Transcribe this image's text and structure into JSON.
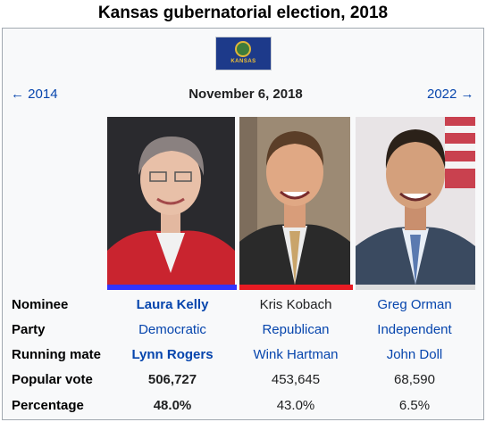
{
  "title": "Kansas gubernatorial election, 2018",
  "flag": {
    "text": "KANSAS",
    "icon": "kansas-flag-icon"
  },
  "nav": {
    "prev": "← 2014",
    "date": "November 6, 2018",
    "next": "2022 →"
  },
  "rows": {
    "nominee": "Nominee",
    "party": "Party",
    "running_mate": "Running mate",
    "popular_vote": "Popular vote",
    "percentage": "Percentage"
  },
  "candidates": [
    {
      "nominee": "Laura Kelly",
      "party": "Democratic",
      "running_mate": "Lynn Rogers",
      "popular_vote": "506,727",
      "percentage": "48.0%",
      "party_color": "#3333FF",
      "winner": true
    },
    {
      "nominee": "Kris Kobach",
      "party": "Republican",
      "running_mate": "Wink Hartman",
      "popular_vote": "453,645",
      "percentage": "43.0%",
      "party_color": "#E81B23",
      "winner": false
    },
    {
      "nominee": "Greg Orman",
      "party": "Independent",
      "running_mate": "John Doll",
      "popular_vote": "68,590",
      "percentage": "6.5%",
      "party_color": "#DDDDDD",
      "winner": false
    }
  ]
}
